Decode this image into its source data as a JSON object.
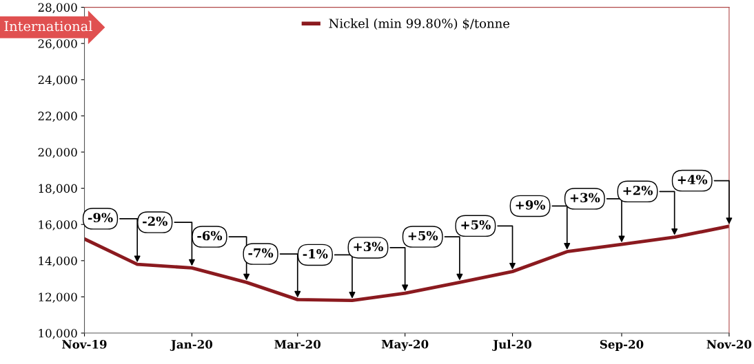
{
  "chart_data": {
    "type": "line",
    "x": [
      "2019-11",
      "2019-12",
      "2020-01",
      "2020-02",
      "2020-03",
      "2020-04",
      "2020-05",
      "2020-06",
      "2020-07",
      "2020-08",
      "2020-09",
      "2020-10",
      "2020-11"
    ],
    "series": [
      {
        "name": "Nickel (min 99.80%) $/tonne",
        "color": "#8b1a1f",
        "values": [
          15200,
          13800,
          13600,
          12800,
          11850,
          11800,
          12200,
          12800,
          13400,
          14500,
          14900,
          15300,
          15900
        ]
      }
    ],
    "xlim": [
      "2019-11",
      "2020-11"
    ],
    "xticks": [
      {
        "value": "2019-11",
        "label": "Nov-19"
      },
      {
        "value": "2020-01",
        "label": "Jan-20"
      },
      {
        "value": "2020-03",
        "label": "Mar-20"
      },
      {
        "value": "2020-05",
        "label": "May-20"
      },
      {
        "value": "2020-07",
        "label": "Jul-20"
      },
      {
        "value": "2020-09",
        "label": "Sep-20"
      },
      {
        "value": "2020-11",
        "label": "Nov-20"
      }
    ],
    "ylim": [
      10000,
      28000
    ],
    "yticks": [
      {
        "value": 10000,
        "label": "10,000"
      },
      {
        "value": 12000,
        "label": "12,000"
      },
      {
        "value": 14000,
        "label": "14,000"
      },
      {
        "value": 16000,
        "label": "16,000"
      },
      {
        "value": 18000,
        "label": "18,000"
      },
      {
        "value": 20000,
        "label": "20,000"
      },
      {
        "value": 22000,
        "label": "22,000"
      },
      {
        "value": 24000,
        "label": "24,000"
      },
      {
        "value": 26000,
        "label": "26,000"
      },
      {
        "value": 28000,
        "label": "28,000"
      }
    ],
    "grid": false,
    "legend": "top",
    "marker": "none",
    "line_style": "solid",
    "annotations": [
      "International",
      {
        "text": "-9%",
        "x": "2019-12",
        "y": 13800
      },
      {
        "text": "-2%",
        "x": "2020-01",
        "y": 13600
      },
      {
        "text": "-6%",
        "x": "2020-02",
        "y": 12800
      },
      {
        "text": "-7%",
        "x": "2020-03",
        "y": 11850
      },
      {
        "text": "-1%",
        "x": "2020-04",
        "y": 11800
      },
      {
        "text": "+3%",
        "x": "2020-05",
        "y": 12200
      },
      {
        "text": "+5%",
        "x": "2020-06",
        "y": 12800
      },
      {
        "text": "+5%",
        "x": "2020-07",
        "y": 13400
      },
      {
        "text": "+9%",
        "x": "2020-08",
        "y": 14500
      },
      {
        "text": "+3%",
        "x": "2020-09",
        "y": 14900
      },
      {
        "text": "+2%",
        "x": "2020-10",
        "y": 15300
      },
      {
        "text": "+4%",
        "x": "2020-11",
        "y": 15900
      }
    ]
  }
}
